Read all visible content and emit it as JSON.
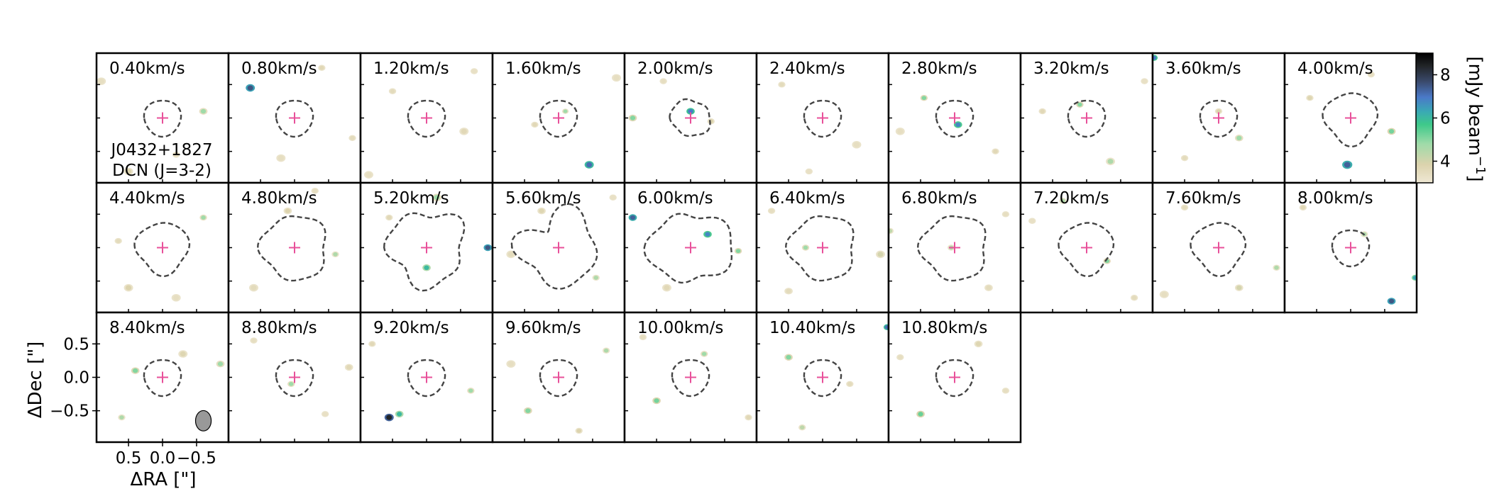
{
  "chart_data": {
    "type": "channel_map",
    "panels": [
      {
        "label": "0.40km/s",
        "mask_shape": "small",
        "blobs": [
          [
            -0.6,
            0.1,
            4.6,
            0.045
          ],
          [
            0.5,
            -0.8,
            3.8,
            0.05
          ],
          [
            0.9,
            0.55,
            3.4,
            0.05
          ],
          [
            -0.2,
            -0.55,
            3.3,
            0.04
          ]
        ]
      },
      {
        "label": "0.80km/s",
        "mask_shape": "small",
        "blobs": [
          [
            0.65,
            0.45,
            7.2,
            0.05
          ],
          [
            -0.4,
            0.75,
            3.6,
            0.04
          ],
          [
            0.2,
            -0.6,
            3.4,
            0.05
          ],
          [
            -0.85,
            -0.3,
            3.5,
            0.04
          ]
        ]
      },
      {
        "label": "1.20km/s",
        "mask_shape": "small",
        "blobs": [
          [
            0.5,
            0.4,
            3.5,
            0.04
          ],
          [
            -0.55,
            -0.2,
            3.6,
            0.05
          ],
          [
            0.85,
            -0.85,
            3.4,
            0.05
          ],
          [
            -0.7,
            0.7,
            3.3,
            0.04
          ]
        ]
      },
      {
        "label": "1.60km/s",
        "mask_shape": "small",
        "blobs": [
          [
            -0.45,
            -0.7,
            6.8,
            0.05
          ],
          [
            -0.1,
            0.1,
            4.6,
            0.035
          ],
          [
            0.35,
            -0.1,
            3.6,
            0.04
          ],
          [
            -0.85,
            0.6,
            3.4,
            0.05
          ]
        ]
      },
      {
        "label": "2.00km/s",
        "mask_shape": "small_irreg",
        "blobs": [
          [
            0.0,
            0.1,
            6.6,
            0.045
          ],
          [
            0.85,
            0.0,
            4.8,
            0.045
          ],
          [
            -0.3,
            -0.05,
            3.8,
            0.04
          ],
          [
            0.4,
            0.55,
            3.4,
            0.04
          ]
        ]
      },
      {
        "label": "2.40km/s",
        "mask_shape": "small",
        "blobs": [
          [
            0.6,
            0.5,
            3.5,
            0.04
          ],
          [
            -0.5,
            -0.4,
            3.4,
            0.05
          ],
          [
            0.2,
            -0.8,
            3.3,
            0.04
          ]
        ]
      },
      {
        "label": "2.80km/s",
        "mask_shape": "small",
        "blobs": [
          [
            -0.05,
            -0.1,
            6.4,
            0.045
          ],
          [
            0.45,
            0.3,
            4.8,
            0.04
          ],
          [
            -0.6,
            -0.5,
            3.6,
            0.04
          ],
          [
            0.8,
            -0.2,
            3.4,
            0.05
          ]
        ]
      },
      {
        "label": "3.20km/s",
        "mask_shape": "small",
        "blobs": [
          [
            0.1,
            0.2,
            4.8,
            0.04
          ],
          [
            -0.35,
            -0.65,
            4.4,
            0.05
          ],
          [
            0.65,
            0.1,
            3.6,
            0.04
          ],
          [
            -0.85,
            0.55,
            3.3,
            0.04
          ]
        ]
      },
      {
        "label": "3.60km/s",
        "mask_shape": "small",
        "blobs": [
          [
            0.95,
            0.9,
            6.6,
            0.04
          ],
          [
            -0.3,
            -0.3,
            4.6,
            0.045
          ],
          [
            0.0,
            0.1,
            3.8,
            0.04
          ],
          [
            0.5,
            -0.6,
            3.5,
            0.04
          ]
        ]
      },
      {
        "label": "4.00km/s",
        "mask_shape": "medium",
        "blobs": [
          [
            0.05,
            -0.7,
            7.0,
            0.055
          ],
          [
            -0.6,
            -0.2,
            4.9,
            0.045
          ],
          [
            0.6,
            0.3,
            3.7,
            0.04
          ],
          [
            -0.3,
            0.65,
            3.4,
            0.04
          ]
        ]
      },
      {
        "label": "4.40km/s",
        "mask_shape": "medium",
        "blobs": [
          [
            -0.6,
            0.45,
            4.6,
            0.04
          ],
          [
            0.5,
            -0.6,
            3.8,
            0.05
          ],
          [
            0.65,
            0.1,
            3.5,
            0.04
          ],
          [
            -0.2,
            -0.75,
            3.4,
            0.05
          ]
        ]
      },
      {
        "label": "4.80km/s",
        "mask_shape": "large",
        "blobs": [
          [
            -0.6,
            -0.1,
            4.4,
            0.04
          ],
          [
            0.1,
            0.55,
            3.8,
            0.045
          ],
          [
            0.6,
            -0.6,
            3.5,
            0.05
          ],
          [
            -0.3,
            0.85,
            3.4,
            0.04
          ]
        ]
      },
      {
        "label": "5.20km/s",
        "mask_shape": "large_irreg",
        "blobs": [
          [
            -0.9,
            0.0,
            7.2,
            0.045
          ],
          [
            0.0,
            -0.3,
            5.6,
            0.045
          ],
          [
            -0.15,
            0.75,
            4.6,
            0.05
          ],
          [
            0.55,
            0.45,
            3.6,
            0.04
          ]
        ]
      },
      {
        "label": "5.60km/s",
        "mask_shape": "large_notch",
        "blobs": [
          [
            -0.55,
            -0.45,
            4.4,
            0.04
          ],
          [
            0.25,
            0.55,
            3.7,
            0.045
          ],
          [
            0.7,
            -0.1,
            3.5,
            0.05
          ],
          [
            -0.8,
            0.75,
            3.3,
            0.04
          ]
        ]
      },
      {
        "label": "6.00km/s",
        "mask_shape": "large_irreg2",
        "blobs": [
          [
            0.85,
            0.45,
            7.0,
            0.045
          ],
          [
            -0.25,
            0.2,
            6.4,
            0.045
          ],
          [
            -0.7,
            -0.05,
            4.8,
            0.04
          ],
          [
            0.35,
            -0.6,
            3.6,
            0.05
          ]
        ]
      },
      {
        "label": "6.40km/s",
        "mask_shape": "large",
        "blobs": [
          [
            0.25,
            0.0,
            4.6,
            0.04
          ],
          [
            -0.85,
            -0.1,
            3.9,
            0.05
          ],
          [
            0.5,
            -0.65,
            3.5,
            0.045
          ],
          [
            0.75,
            0.55,
            3.4,
            0.04
          ]
        ]
      },
      {
        "label": "6.80km/s",
        "mask_shape": "large",
        "blobs": [
          [
            0.05,
            0.0,
            4.4,
            0.04
          ],
          [
            0.95,
            0.25,
            4.2,
            0.04
          ],
          [
            -0.5,
            -0.6,
            3.5,
            0.045
          ],
          [
            -0.75,
            0.5,
            3.4,
            0.04
          ]
        ]
      },
      {
        "label": "7.20km/s",
        "mask_shape": "medium",
        "blobs": [
          [
            -0.3,
            -0.2,
            4.8,
            0.04
          ],
          [
            0.35,
            0.7,
            4.4,
            0.04
          ],
          [
            -0.7,
            -0.75,
            3.5,
            0.04
          ],
          [
            0.8,
            0.4,
            3.3,
            0.04
          ]
        ]
      },
      {
        "label": "7.60km/s",
        "mask_shape": "medium",
        "blobs": [
          [
            -0.85,
            -0.3,
            4.4,
            0.04
          ],
          [
            -0.3,
            -0.6,
            3.9,
            0.045
          ],
          [
            0.5,
            0.6,
            3.5,
            0.04
          ],
          [
            0.8,
            -0.7,
            3.4,
            0.05
          ]
        ]
      },
      {
        "label": "8.00km/s",
        "mask_shape": "small",
        "blobs": [
          [
            -0.6,
            -0.8,
            7.2,
            0.045
          ],
          [
            -0.95,
            -0.45,
            6.0,
            0.04
          ],
          [
            -0.2,
            0.2,
            4.4,
            0.04
          ],
          [
            0.7,
            0.6,
            3.6,
            0.04
          ]
        ]
      },
      {
        "label": "8.40km/s",
        "mask_shape": "small",
        "blobs": [
          [
            0.4,
            0.1,
            4.8,
            0.045
          ],
          [
            0.6,
            -0.6,
            4.4,
            0.04
          ],
          [
            -0.85,
            0.2,
            4.6,
            0.045
          ],
          [
            -0.3,
            0.35,
            3.7,
            0.05
          ]
        ]
      },
      {
        "label": "8.80km/s",
        "mask_shape": "small",
        "blobs": [
          [
            0.05,
            -0.1,
            4.6,
            0.04
          ],
          [
            -0.8,
            0.15,
            3.6,
            0.045
          ],
          [
            0.6,
            0.55,
            3.4,
            0.04
          ],
          [
            -0.45,
            -0.55,
            3.3,
            0.04
          ]
        ]
      },
      {
        "label": "9.20km/s",
        "mask_shape": "small",
        "blobs": [
          [
            0.55,
            -0.6,
            8.2,
            0.05
          ],
          [
            0.4,
            -0.55,
            5.6,
            0.045
          ],
          [
            -0.65,
            -0.2,
            4.6,
            0.04
          ],
          [
            0.8,
            0.5,
            3.6,
            0.04
          ]
        ]
      },
      {
        "label": "9.60km/s",
        "mask_shape": "small",
        "blobs": [
          [
            0.45,
            -0.5,
            4.8,
            0.045
          ],
          [
            -0.7,
            0.4,
            4.4,
            0.04
          ],
          [
            -0.3,
            -0.8,
            3.8,
            0.04
          ],
          [
            0.7,
            0.2,
            3.4,
            0.05
          ]
        ]
      },
      {
        "label": "10.00km/s",
        "mask_shape": "small",
        "blobs": [
          [
            0.5,
            -0.35,
            4.9,
            0.045
          ],
          [
            -0.2,
            0.35,
            4.6,
            0.04
          ],
          [
            -0.85,
            -0.6,
            3.6,
            0.04
          ],
          [
            0.7,
            0.6,
            3.4,
            0.04
          ]
        ]
      },
      {
        "label": "10.40km/s",
        "mask_shape": "small",
        "blobs": [
          [
            -0.95,
            0.75,
            6.8,
            0.04
          ],
          [
            0.5,
            0.3,
            4.8,
            0.045
          ],
          [
            0.3,
            -0.75,
            4.2,
            0.04
          ],
          [
            -0.4,
            -0.1,
            3.5,
            0.04
          ]
        ]
      },
      {
        "label": "10.80km/s",
        "mask_shape": "small",
        "blobs": [
          [
            0.5,
            -0.55,
            5.0,
            0.045
          ],
          [
            -0.35,
            0.5,
            3.7,
            0.045
          ],
          [
            0.8,
            0.3,
            3.4,
            0.04
          ],
          [
            -0.75,
            -0.2,
            3.4,
            0.04
          ]
        ]
      }
    ],
    "source_annotation": [
      "J0432+1827",
      "DCN (J=3-2)"
    ],
    "xlabel": "ΔRA [\"]",
    "ylabel": "ΔDec [\"]",
    "xticks": [
      0.5,
      0.0,
      -0.5
    ],
    "xtick_labels": [
      "0.5",
      "0.0",
      "−0.5"
    ],
    "yticks": [
      0.5,
      0.0,
      -0.5
    ],
    "ytick_labels": [
      "0.5",
      "0.0",
      "−0.5"
    ],
    "xlim": [
      0.97,
      -0.97
    ],
    "ylim": [
      -0.97,
      0.97
    ],
    "colorbar": {
      "label": "[mJy beam",
      "label_superscript": "−1",
      "label_close": "]",
      "ticks": [
        4,
        6,
        8
      ],
      "tick_labels": [
        "4",
        "6",
        "8"
      ],
      "range": [
        3,
        9
      ]
    },
    "center_marker_color": "#e8509a",
    "mask_color": "#444444",
    "beam": {
      "shown_in_panel": "8.40km/s",
      "ra": -0.6,
      "dec": -0.65,
      "major": 0.15,
      "minor": 0.115
    }
  }
}
